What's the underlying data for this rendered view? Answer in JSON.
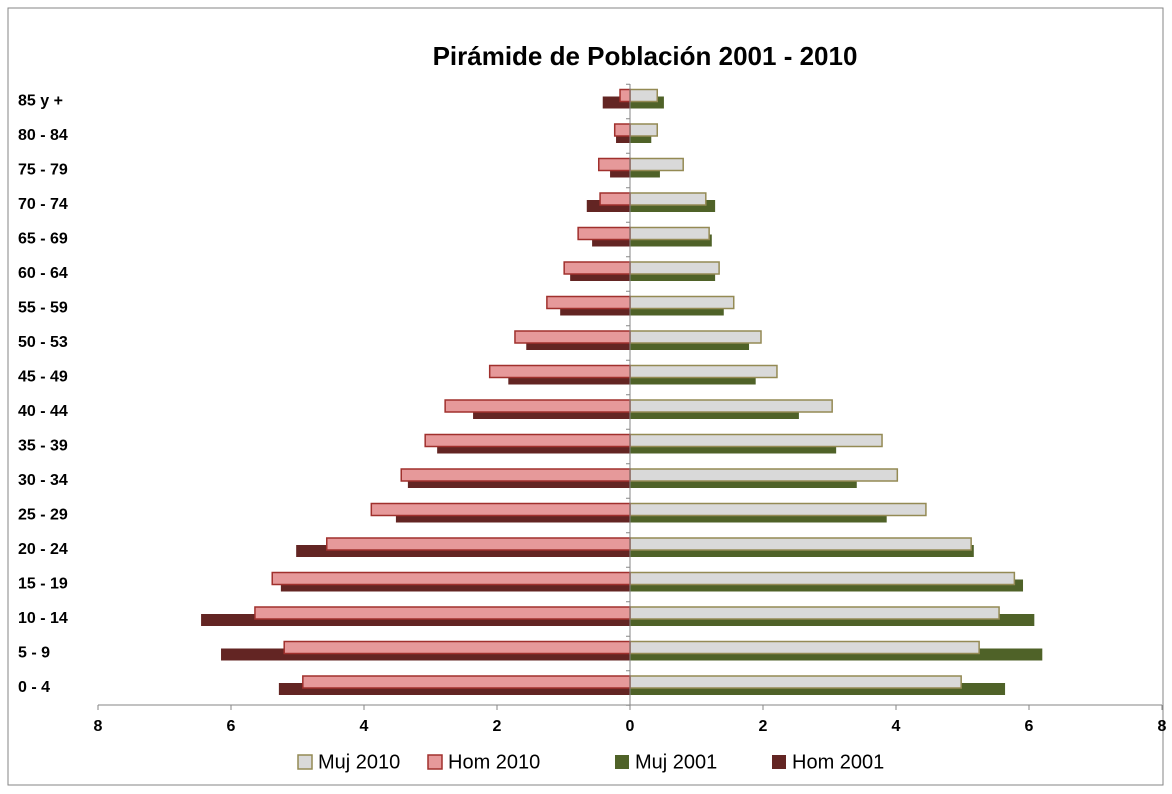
{
  "chart_data": {
    "type": "bar",
    "orientation": "horizontal",
    "title": "Pirámide de Población 2001 - 2010",
    "categories": [
      "0 - 4",
      "5 - 9",
      "10 - 14",
      "15 - 19",
      "20 - 24",
      "25 - 29",
      "30 - 34",
      "35 - 39",
      "40 - 44",
      "45 - 49",
      "50 - 53",
      "55 - 59",
      "60 - 64",
      "65 - 69",
      "70 - 74",
      "75 - 79",
      "80 - 84",
      "85 y  +"
    ],
    "series": [
      {
        "name": "Muj 2010",
        "color": "#d9d9d9",
        "stroke": "#948a54",
        "values": [
          4.98,
          5.25,
          5.55,
          5.78,
          5.13,
          4.45,
          4.02,
          3.79,
          3.04,
          2.21,
          1.97,
          1.56,
          1.34,
          1.19,
          1.14,
          0.8,
          0.41,
          0.41
        ]
      },
      {
        "name": "Hom 2010",
        "color": "#e6999a",
        "stroke": "#a0302d",
        "values": [
          -4.92,
          -5.2,
          -5.64,
          -5.38,
          -4.56,
          -3.89,
          -3.44,
          -3.08,
          -2.78,
          -2.11,
          -1.73,
          -1.25,
          -0.99,
          -0.78,
          -0.45,
          -0.47,
          -0.23,
          -0.15
        ]
      },
      {
        "name": "Muj 2001",
        "color": "#4f6228",
        "values": [
          5.64,
          6.2,
          6.08,
          5.91,
          5.17,
          3.86,
          3.41,
          3.1,
          2.54,
          1.89,
          1.79,
          1.41,
          1.28,
          1.23,
          1.28,
          0.45,
          0.32,
          0.51
        ]
      },
      {
        "name": "Hom 2001",
        "color": "#632523",
        "values": [
          -5.28,
          -6.15,
          -6.45,
          -5.25,
          -5.02,
          -3.52,
          -3.34,
          -2.9,
          -2.36,
          -1.83,
          -1.56,
          -1.05,
          -0.9,
          -0.57,
          -0.65,
          -0.3,
          -0.21,
          -0.41
        ]
      }
    ],
    "xlim": [
      -8,
      8
    ],
    "xticks": [
      {
        "value": -8,
        "label": "8"
      },
      {
        "value": -6,
        "label": "6"
      },
      {
        "value": -4,
        "label": "4"
      },
      {
        "value": -2,
        "label": "2"
      },
      0,
      2,
      4,
      6,
      8
    ],
    "legend": "bottom"
  }
}
